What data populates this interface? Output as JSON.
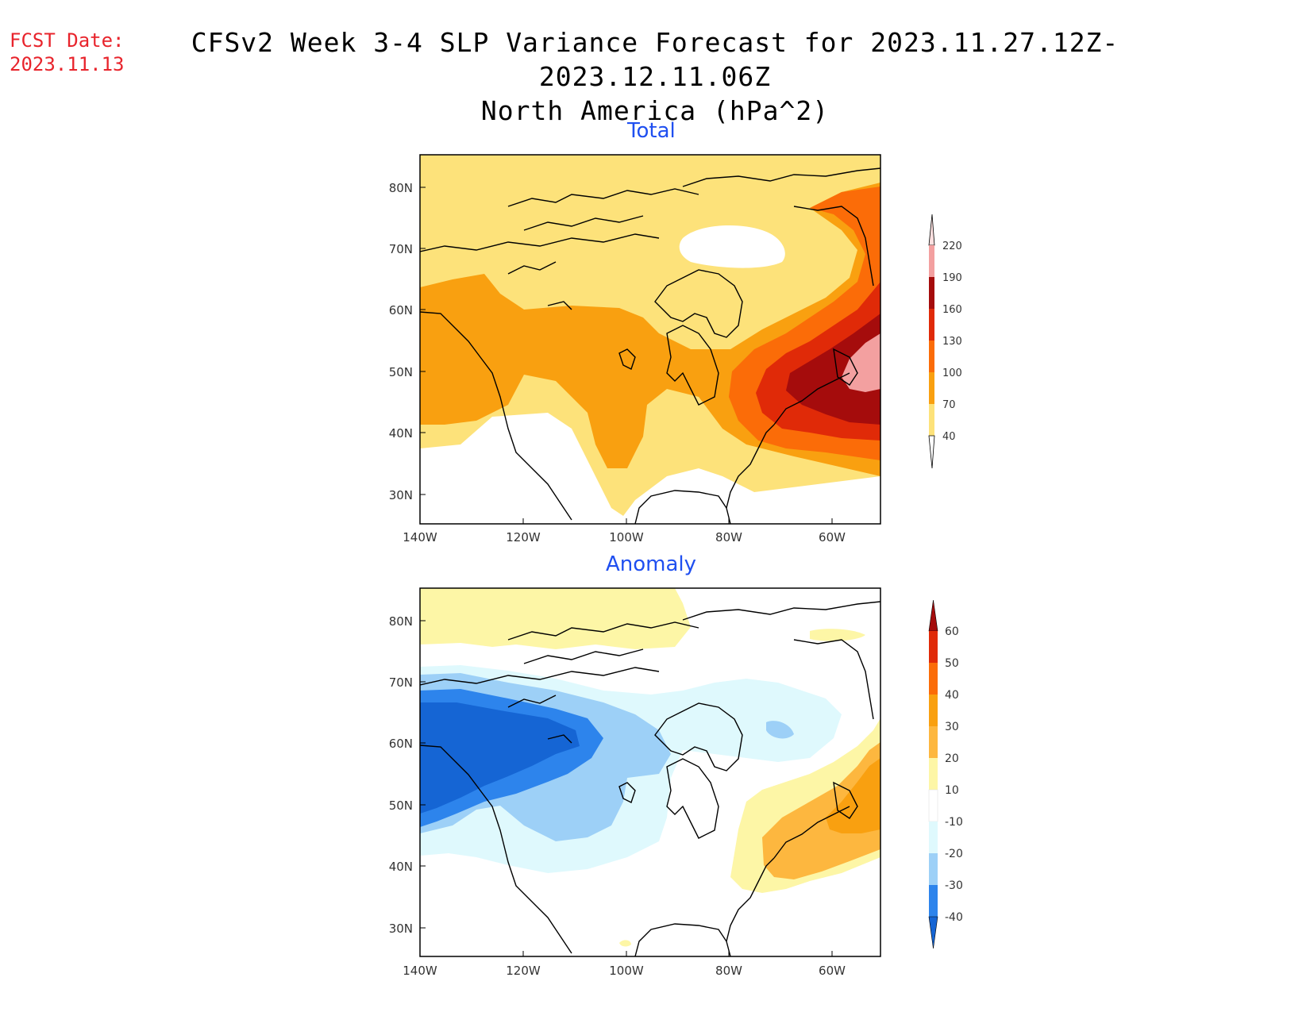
{
  "header": {
    "fcst_label": "FCST Date:",
    "fcst_date": "2023.11.13",
    "title_line1": "CFSv2 Week 3-4 SLP Variance Forecast for 2023.11.27.12Z-2023.12.11.06Z",
    "title_line2": "North America (hPa^2)"
  },
  "map_axes": {
    "lat_labels": [
      "80N",
      "70N",
      "60N",
      "50N",
      "40N",
      "30N"
    ],
    "lon_labels": [
      "140W",
      "120W",
      "100W",
      "80W",
      "60W"
    ]
  },
  "panels": {
    "total": {
      "title": "Total",
      "colorbar_labels": [
        "220",
        "190",
        "160",
        "130",
        "100",
        "70",
        "40"
      ],
      "colorbar_colors": [
        "#fde0e0",
        "#f3a0a0",
        "#a50c0c",
        "#e02a08",
        "#fb6c08",
        "#f9a010",
        "#fde27a"
      ]
    },
    "anomaly": {
      "title": "Anomaly",
      "colorbar_labels": [
        "60",
        "50",
        "40",
        "30",
        "20",
        "10",
        "-10",
        "-20",
        "-30",
        "-40"
      ],
      "colorbar_colors": [
        "#a50c0c",
        "#e02a08",
        "#fb6c08",
        "#f9a010",
        "#fdb73f",
        "#fdf6a6",
        "#ffffff",
        "#dff9fd",
        "#9dd0f7",
        "#2d84ec",
        "#1565d4"
      ]
    }
  }
}
